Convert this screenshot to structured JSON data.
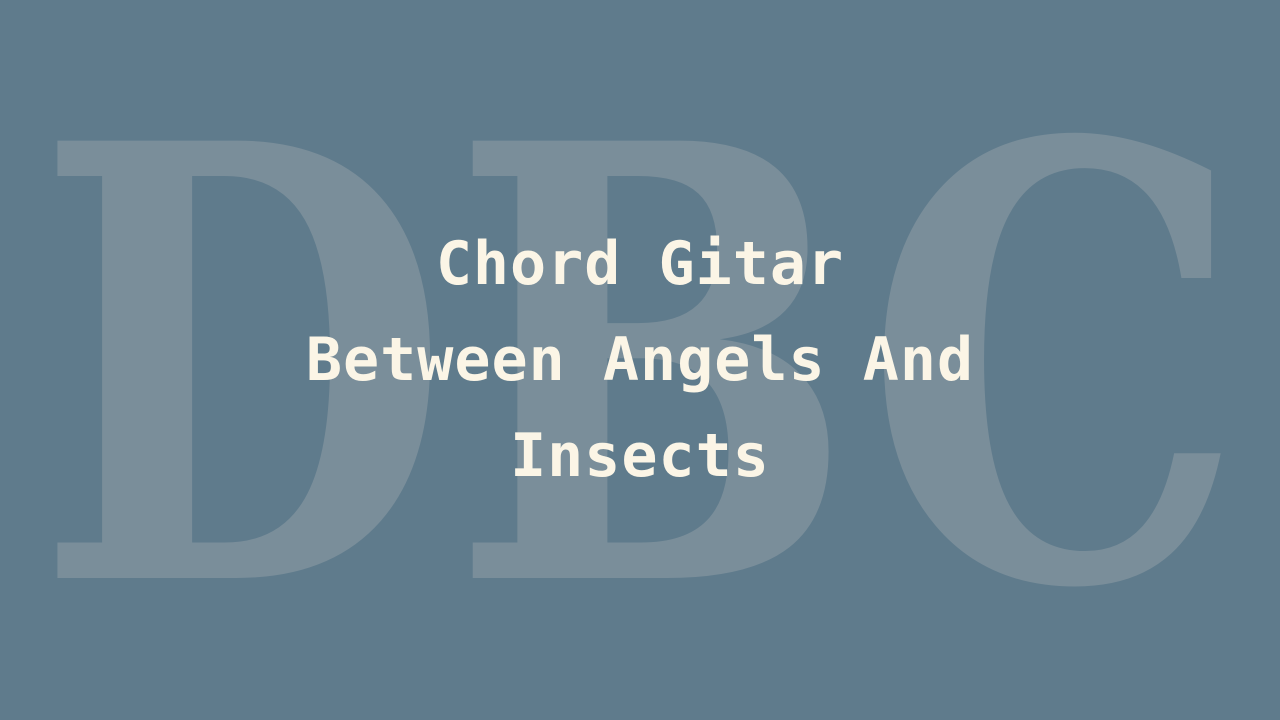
{
  "watermark": {
    "text": "DBC",
    "color": "#7a8e9a"
  },
  "title": {
    "line1": "Chord Gitar",
    "line2": "Between Angels And",
    "line3": "Insects"
  },
  "colors": {
    "background": "#5f7b8c",
    "title_text": "#fbf5e6"
  }
}
